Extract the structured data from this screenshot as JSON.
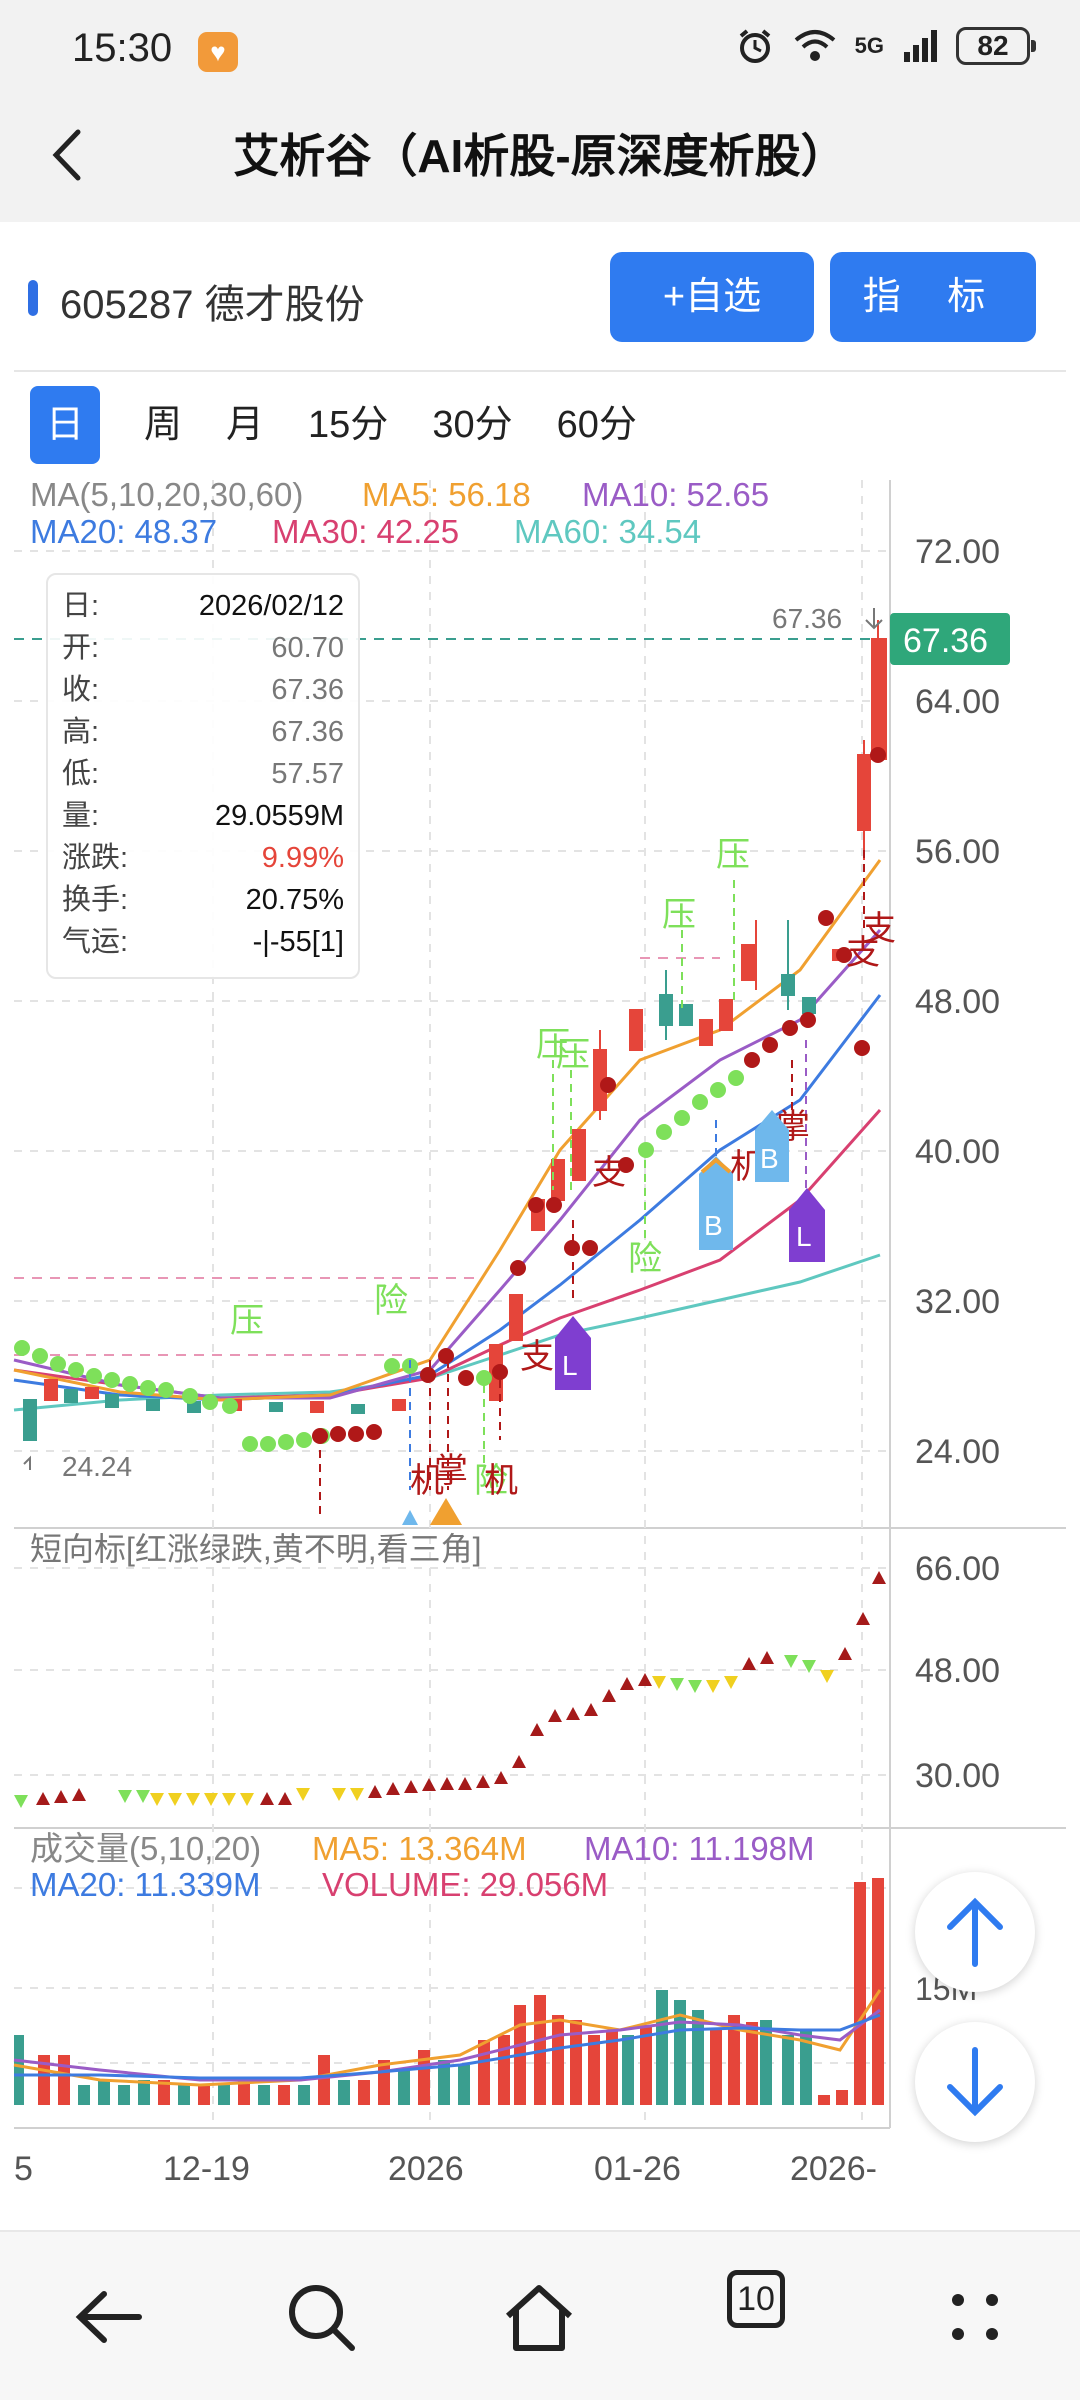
{
  "status": {
    "time": "15:30",
    "signal": "5G",
    "battery": "82"
  },
  "titlebar": {
    "title": "艾析谷（AI析股-原深度析股）"
  },
  "stock": {
    "code_name": "605287 德才股份",
    "add_watch": "+自选",
    "indicator": "指 标"
  },
  "periods": [
    "日",
    "周",
    "月",
    "15分",
    "30分",
    "60分"
  ],
  "ma_legend": {
    "title": "MA(5,10,20,30,60)",
    "ma5": "MA5: 56.18",
    "ma10": "MA10: 52.65",
    "ma20": "MA20: 48.37",
    "ma30": "MA30: 42.25",
    "ma60": "MA60: 34.54"
  },
  "price_axis": [
    "72.00",
    "64.00",
    "56.00",
    "48.00",
    "40.00",
    "32.00",
    "24.00"
  ],
  "last_price": "67.36",
  "high_mark": "67.36",
  "low_mark": "24.24",
  "info": {
    "rows": [
      {
        "k": "日:",
        "v": "2026/02/12",
        "c": ""
      },
      {
        "k": "开:",
        "v": "60.70",
        "c": "gray"
      },
      {
        "k": "收:",
        "v": "67.36",
        "c": "gray"
      },
      {
        "k": "高:",
        "v": "67.36",
        "c": "gray"
      },
      {
        "k": "低:",
        "v": "57.57",
        "c": "gray"
      },
      {
        "k": "量:",
        "v": "29.0559M",
        "c": ""
      },
      {
        "k": "涨跌:",
        "v": "9.99%",
        "c": "red"
      },
      {
        "k": "换手:",
        "v": "20.75%",
        "c": ""
      },
      {
        "k": "气运:",
        "v": "-|-55[1]",
        "c": ""
      }
    ]
  },
  "signals": {
    "ya": "压",
    "xian": "险",
    "zhi": "支",
    "ji": "机",
    "zhang": "掌",
    "B": "B",
    "L": "L"
  },
  "short_panel": {
    "title": "短向标[红涨绿跌,黄不明,看三角]",
    "axis": [
      "66.00",
      "48.00",
      "30.00"
    ]
  },
  "volume_panel": {
    "title": "成交量(5,10,20)",
    "ma5": "MA5: 13.364M",
    "ma10": "MA10: 11.198M",
    "ma20": "MA20: 11.339M",
    "volume": "VOLUME: 29.056M",
    "axis_15m": "15M"
  },
  "date_axis": [
    "5",
    "12-19",
    "2026",
    "01-26",
    "2026-"
  ],
  "colors": {
    "up": "#e5453a",
    "down": "#3a9e8f",
    "accent": "#2f7bf0",
    "ma5": "#f0a030",
    "ma10": "#9a5cc6",
    "ma20": "#3d7be0",
    "ma30": "#d84070",
    "ma60": "#5fc8c0"
  },
  "nav": {
    "tabs_count": "10"
  }
}
